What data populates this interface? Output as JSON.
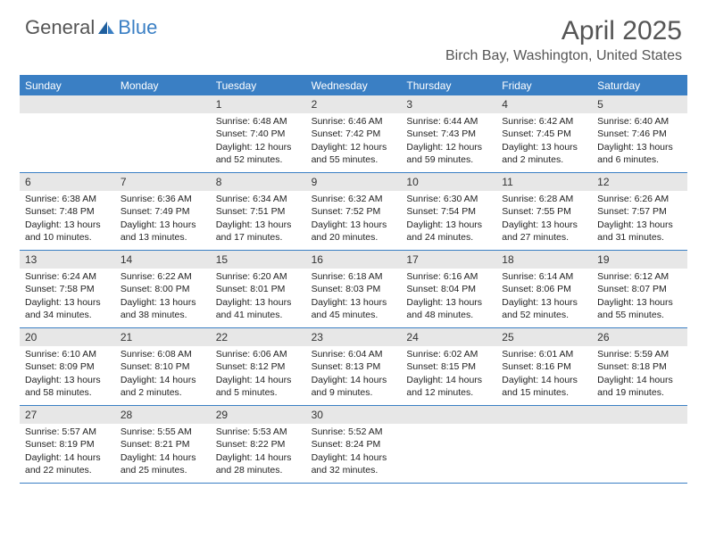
{
  "brand": {
    "general": "General",
    "blue": "Blue"
  },
  "title": "April 2025",
  "location": "Birch Bay, Washington, United States",
  "colors": {
    "accent": "#3a7fc4",
    "dow_bg": "#3a7fc4",
    "dow_text": "#ffffff",
    "daynum_bg": "#e7e7e7",
    "border": "#3a7fc4",
    "body_text": "#222222",
    "title_text": "#555555"
  },
  "days_of_week": [
    "Sunday",
    "Monday",
    "Tuesday",
    "Wednesday",
    "Thursday",
    "Friday",
    "Saturday"
  ],
  "weeks": [
    [
      null,
      null,
      {
        "n": "1",
        "sr": "Sunrise: 6:48 AM",
        "ss": "Sunset: 7:40 PM",
        "dl": "Daylight: 12 hours and 52 minutes."
      },
      {
        "n": "2",
        "sr": "Sunrise: 6:46 AM",
        "ss": "Sunset: 7:42 PM",
        "dl": "Daylight: 12 hours and 55 minutes."
      },
      {
        "n": "3",
        "sr": "Sunrise: 6:44 AM",
        "ss": "Sunset: 7:43 PM",
        "dl": "Daylight: 12 hours and 59 minutes."
      },
      {
        "n": "4",
        "sr": "Sunrise: 6:42 AM",
        "ss": "Sunset: 7:45 PM",
        "dl": "Daylight: 13 hours and 2 minutes."
      },
      {
        "n": "5",
        "sr": "Sunrise: 6:40 AM",
        "ss": "Sunset: 7:46 PM",
        "dl": "Daylight: 13 hours and 6 minutes."
      }
    ],
    [
      {
        "n": "6",
        "sr": "Sunrise: 6:38 AM",
        "ss": "Sunset: 7:48 PM",
        "dl": "Daylight: 13 hours and 10 minutes."
      },
      {
        "n": "7",
        "sr": "Sunrise: 6:36 AM",
        "ss": "Sunset: 7:49 PM",
        "dl": "Daylight: 13 hours and 13 minutes."
      },
      {
        "n": "8",
        "sr": "Sunrise: 6:34 AM",
        "ss": "Sunset: 7:51 PM",
        "dl": "Daylight: 13 hours and 17 minutes."
      },
      {
        "n": "9",
        "sr": "Sunrise: 6:32 AM",
        "ss": "Sunset: 7:52 PM",
        "dl": "Daylight: 13 hours and 20 minutes."
      },
      {
        "n": "10",
        "sr": "Sunrise: 6:30 AM",
        "ss": "Sunset: 7:54 PM",
        "dl": "Daylight: 13 hours and 24 minutes."
      },
      {
        "n": "11",
        "sr": "Sunrise: 6:28 AM",
        "ss": "Sunset: 7:55 PM",
        "dl": "Daylight: 13 hours and 27 minutes."
      },
      {
        "n": "12",
        "sr": "Sunrise: 6:26 AM",
        "ss": "Sunset: 7:57 PM",
        "dl": "Daylight: 13 hours and 31 minutes."
      }
    ],
    [
      {
        "n": "13",
        "sr": "Sunrise: 6:24 AM",
        "ss": "Sunset: 7:58 PM",
        "dl": "Daylight: 13 hours and 34 minutes."
      },
      {
        "n": "14",
        "sr": "Sunrise: 6:22 AM",
        "ss": "Sunset: 8:00 PM",
        "dl": "Daylight: 13 hours and 38 minutes."
      },
      {
        "n": "15",
        "sr": "Sunrise: 6:20 AM",
        "ss": "Sunset: 8:01 PM",
        "dl": "Daylight: 13 hours and 41 minutes."
      },
      {
        "n": "16",
        "sr": "Sunrise: 6:18 AM",
        "ss": "Sunset: 8:03 PM",
        "dl": "Daylight: 13 hours and 45 minutes."
      },
      {
        "n": "17",
        "sr": "Sunrise: 6:16 AM",
        "ss": "Sunset: 8:04 PM",
        "dl": "Daylight: 13 hours and 48 minutes."
      },
      {
        "n": "18",
        "sr": "Sunrise: 6:14 AM",
        "ss": "Sunset: 8:06 PM",
        "dl": "Daylight: 13 hours and 52 minutes."
      },
      {
        "n": "19",
        "sr": "Sunrise: 6:12 AM",
        "ss": "Sunset: 8:07 PM",
        "dl": "Daylight: 13 hours and 55 minutes."
      }
    ],
    [
      {
        "n": "20",
        "sr": "Sunrise: 6:10 AM",
        "ss": "Sunset: 8:09 PM",
        "dl": "Daylight: 13 hours and 58 minutes."
      },
      {
        "n": "21",
        "sr": "Sunrise: 6:08 AM",
        "ss": "Sunset: 8:10 PM",
        "dl": "Daylight: 14 hours and 2 minutes."
      },
      {
        "n": "22",
        "sr": "Sunrise: 6:06 AM",
        "ss": "Sunset: 8:12 PM",
        "dl": "Daylight: 14 hours and 5 minutes."
      },
      {
        "n": "23",
        "sr": "Sunrise: 6:04 AM",
        "ss": "Sunset: 8:13 PM",
        "dl": "Daylight: 14 hours and 9 minutes."
      },
      {
        "n": "24",
        "sr": "Sunrise: 6:02 AM",
        "ss": "Sunset: 8:15 PM",
        "dl": "Daylight: 14 hours and 12 minutes."
      },
      {
        "n": "25",
        "sr": "Sunrise: 6:01 AM",
        "ss": "Sunset: 8:16 PM",
        "dl": "Daylight: 14 hours and 15 minutes."
      },
      {
        "n": "26",
        "sr": "Sunrise: 5:59 AM",
        "ss": "Sunset: 8:18 PM",
        "dl": "Daylight: 14 hours and 19 minutes."
      }
    ],
    [
      {
        "n": "27",
        "sr": "Sunrise: 5:57 AM",
        "ss": "Sunset: 8:19 PM",
        "dl": "Daylight: 14 hours and 22 minutes."
      },
      {
        "n": "28",
        "sr": "Sunrise: 5:55 AM",
        "ss": "Sunset: 8:21 PM",
        "dl": "Daylight: 14 hours and 25 minutes."
      },
      {
        "n": "29",
        "sr": "Sunrise: 5:53 AM",
        "ss": "Sunset: 8:22 PM",
        "dl": "Daylight: 14 hours and 28 minutes."
      },
      {
        "n": "30",
        "sr": "Sunrise: 5:52 AM",
        "ss": "Sunset: 8:24 PM",
        "dl": "Daylight: 14 hours and 32 minutes."
      },
      null,
      null,
      null
    ]
  ]
}
